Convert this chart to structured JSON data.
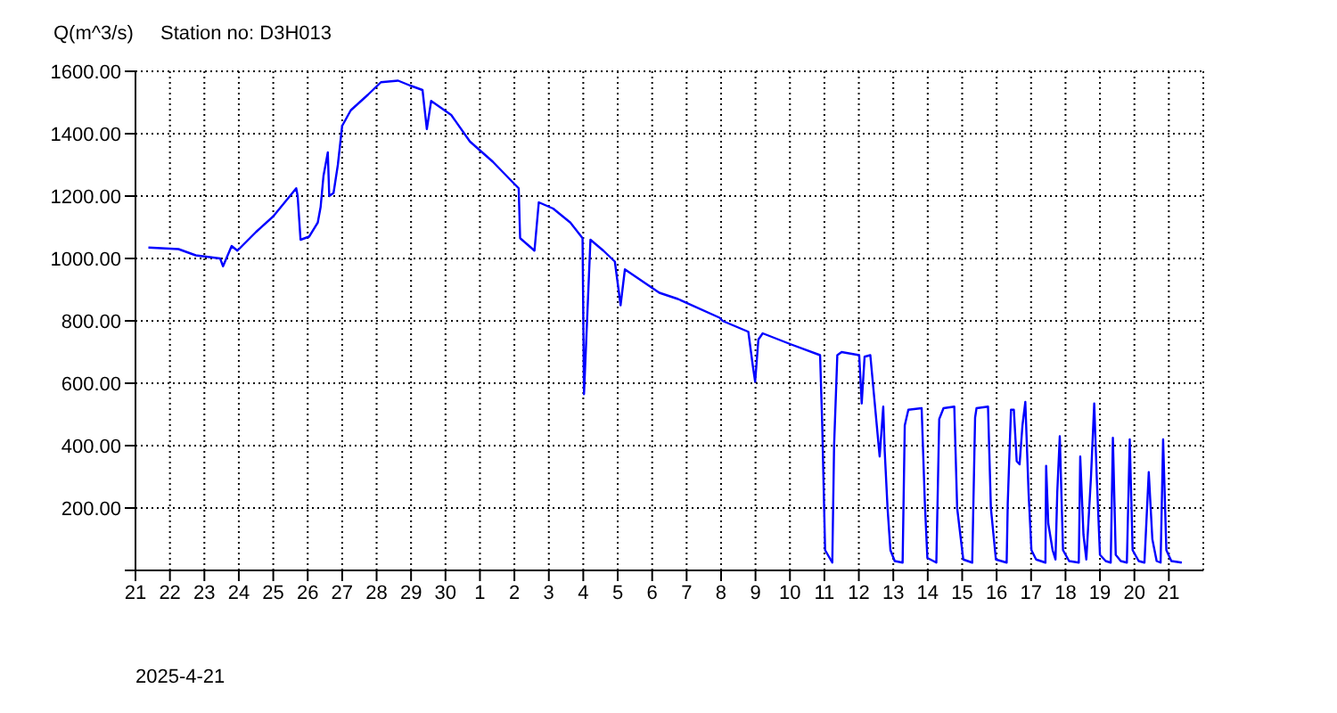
{
  "chart_data": {
    "type": "line",
    "title": "Station no: D3H013",
    "ylabel": "Q(m^3/s)",
    "xlabel": "2025-4-21",
    "grid": true,
    "xlim": [
      "2025-04-21",
      "2025-05-22"
    ],
    "xticks": [
      {
        "value": "2025-04-21",
        "label": "21"
      },
      {
        "value": "2025-04-22",
        "label": "22"
      },
      {
        "value": "2025-04-23",
        "label": "23"
      },
      {
        "value": "2025-04-24",
        "label": "24"
      },
      {
        "value": "2025-04-25",
        "label": "25"
      },
      {
        "value": "2025-04-26",
        "label": "26"
      },
      {
        "value": "2025-04-27",
        "label": "27"
      },
      {
        "value": "2025-04-28",
        "label": "28"
      },
      {
        "value": "2025-04-29",
        "label": "29"
      },
      {
        "value": "2025-04-30",
        "label": "30"
      },
      {
        "value": "2025-05-01",
        "label": "1"
      },
      {
        "value": "2025-05-02",
        "label": "2"
      },
      {
        "value": "2025-05-03",
        "label": "3"
      },
      {
        "value": "2025-05-04",
        "label": "4"
      },
      {
        "value": "2025-05-05",
        "label": "5"
      },
      {
        "value": "2025-05-06",
        "label": "6"
      },
      {
        "value": "2025-05-07",
        "label": "7"
      },
      {
        "value": "2025-05-08",
        "label": "8"
      },
      {
        "value": "2025-05-09",
        "label": "9"
      },
      {
        "value": "2025-05-10",
        "label": "10"
      },
      {
        "value": "2025-05-11",
        "label": "11"
      },
      {
        "value": "2025-05-12",
        "label": "12"
      },
      {
        "value": "2025-05-13",
        "label": "13"
      },
      {
        "value": "2025-05-14",
        "label": "14"
      },
      {
        "value": "2025-05-15",
        "label": "15"
      },
      {
        "value": "2025-05-16",
        "label": "16"
      },
      {
        "value": "2025-05-17",
        "label": "17"
      },
      {
        "value": "2025-05-18",
        "label": "18"
      },
      {
        "value": "2025-05-19",
        "label": "19"
      },
      {
        "value": "2025-05-20",
        "label": "20"
      },
      {
        "value": "2025-05-21",
        "label": "21"
      }
    ],
    "ylim": [
      0,
      1600
    ],
    "yticks": [
      {
        "value": 0,
        "label": null
      },
      {
        "value": 200,
        "label": "200.00"
      },
      {
        "value": 400,
        "label": "400.00"
      },
      {
        "value": 600,
        "label": "600.00"
      },
      {
        "value": 800,
        "label": "800.00"
      },
      {
        "value": 1000,
        "label": "1000.00"
      },
      {
        "value": 1200,
        "label": "1200.00"
      },
      {
        "value": 1400,
        "label": "1400.00"
      },
      {
        "value": 1600,
        "label": "1600.00"
      }
    ],
    "x": [
      "2025-04-21T09:00",
      "2025-04-22T06:00",
      "2025-04-22T18:00",
      "2025-04-23T11:00",
      "2025-04-23T13:00",
      "2025-04-23T19:00",
      "2025-04-23T23:00",
      "2025-04-24T12:00",
      "2025-04-25T00:00",
      "2025-04-25T16:00",
      "2025-04-25T17:00",
      "2025-04-25T19:00",
      "2025-04-26T01:00",
      "2025-04-26T07:00",
      "2025-04-26T09:00",
      "2025-04-26T11:00",
      "2025-04-26T14:00",
      "2025-04-26T15:00",
      "2025-04-26T18:00",
      "2025-04-26T21:00",
      "2025-04-27T00:00",
      "2025-04-27T06:00",
      "2025-04-27T18:00",
      "2025-04-28T03:00",
      "2025-04-28T15:00",
      "2025-04-28T23:00",
      "2025-04-29T08:00",
      "2025-04-29T11:00",
      "2025-04-29T14:00",
      "2025-04-30T04:00",
      "2025-04-30T17:00",
      "2025-05-01T09:00",
      "2025-05-01T23:45",
      "2025-05-02T03:00",
      "2025-05-02T04:00",
      "2025-05-02T14:00",
      "2025-05-02T17:00",
      "2025-05-03T03:00",
      "2025-05-03T15:00",
      "2025-05-03T23:30",
      "2025-05-04T00:30",
      "2025-05-04T05:00",
      "2025-05-04T14:00",
      "2025-05-04T22:00",
      "2025-05-05T02:00",
      "2025-05-05T05:00",
      "2025-05-05T21:00",
      "2025-05-06T05:00",
      "2025-05-06T18:00",
      "2025-05-07T23:00",
      "2025-05-08T01:00",
      "2025-05-08T19:00",
      "2025-05-08T22:00",
      "2025-05-08T23:45",
      "2025-05-09T02:00",
      "2025-05-09T05:00",
      "2025-05-10T00:30",
      "2025-05-10T21:00",
      "2025-05-10T22:30",
      "2025-05-10T23:45",
      "2025-05-11T00:30",
      "2025-05-11T05:30",
      "2025-05-11T06:45",
      "2025-05-11T09:00",
      "2025-05-11T12:00",
      "2025-05-12T00:15",
      "2025-05-12T02:00",
      "2025-05-12T04:00",
      "2025-05-12T08:00",
      "2025-05-12T10:30",
      "2025-05-12T14:30",
      "2025-05-12T17:00",
      "2025-05-12T18:00",
      "2025-05-12T20:00",
      "2025-05-12T22:00",
      "2025-05-13T01:00",
      "2025-05-13T06:30",
      "2025-05-13T08:00",
      "2025-05-13T10:30",
      "2025-05-13T19:45",
      "2025-05-13T22:00",
      "2025-05-13T23:45",
      "2025-05-14T06:00",
      "2025-05-14T08:00",
      "2025-05-14T11:00",
      "2025-05-14T18:30",
      "2025-05-14T20:30",
      "2025-05-15T00:45",
      "2025-05-15T07:00",
      "2025-05-15T09:00",
      "2025-05-15T10:00",
      "2025-05-15T18:00",
      "2025-05-15T20:00",
      "2025-05-15T23:30",
      "2025-05-16T07:00",
      "2025-05-16T07:45",
      "2025-05-16T10:00",
      "2025-05-16T12:00",
      "2025-05-16T14:00",
      "2025-05-16T16:00",
      "2025-05-16T18:00",
      "2025-05-16T20:00",
      "2025-05-16T22:15",
      "2025-05-17T00:15",
      "2025-05-17T03:30",
      "2025-05-17T10:00",
      "2025-05-17T10:30",
      "2025-05-17T12:00",
      "2025-05-17T15:00",
      "2025-05-17T17:00",
      "2025-05-17T18:15",
      "2025-05-17T20:00",
      "2025-05-17T22:15",
      "2025-05-18T02:30",
      "2025-05-18T09:15",
      "2025-05-18T10:15",
      "2025-05-18T12:30",
      "2025-05-18T14:30",
      "2025-05-18T17:45",
      "2025-05-18T20:00",
      "2025-05-18T21:45",
      "2025-05-19T00:00",
      "2025-05-19T04:00",
      "2025-05-19T07:30",
      "2025-05-19T09:00",
      "2025-05-19T11:00",
      "2025-05-19T14:30",
      "2025-05-19T18:45",
      "2025-05-19T20:45",
      "2025-05-19T22:45",
      "2025-05-20T03:00",
      "2025-05-20T07:00",
      "2025-05-20T10:00",
      "2025-05-20T12:30",
      "2025-05-20T15:30",
      "2025-05-20T18:15",
      "2025-05-20T20:00",
      "2025-05-20T22:15",
      "2025-05-21T01:45",
      "2025-05-21T09:00"
    ],
    "series": [
      {
        "color": "#0000ff",
        "values": [
          1035,
          1030,
          1010,
          1000,
          975,
          1040,
          1025,
          1085,
          1135,
          1225,
          1200,
          1060,
          1070,
          1115,
          1165,
          1265,
          1340,
          1200,
          1210,
          1300,
          1425,
          1475,
          1525,
          1565,
          1570,
          1555,
          1540,
          1415,
          1505,
          1460,
          1375,
          1310,
          1240,
          1225,
          1065,
          1025,
          1180,
          1160,
          1115,
          1065,
          565,
          1060,
          1025,
          990,
          850,
          965,
          915,
          890,
          870,
          810,
          800,
          765,
          660,
          605,
          740,
          760,
          725,
          690,
          465,
          215,
          65,
          25,
          400,
          690,
          700,
          690,
          535,
          685,
          690,
          565,
          365,
          525,
          385,
          200,
          65,
          30,
          25,
          465,
          515,
          520,
          215,
          40,
          25,
          485,
          520,
          525,
          200,
          35,
          25,
          490,
          520,
          525,
          200,
          35,
          25,
          215,
          515,
          515,
          350,
          340,
          465,
          540,
          250,
          65,
          35,
          25,
          335,
          150,
          65,
          35,
          250,
          430,
          65,
          30,
          25,
          365,
          115,
          35,
          300,
          535,
          300,
          50,
          30,
          25,
          425,
          50,
          30,
          25,
          420,
          65,
          30,
          25,
          315,
          100,
          30,
          25,
          420,
          65,
          30,
          25
        ]
      }
    ]
  }
}
